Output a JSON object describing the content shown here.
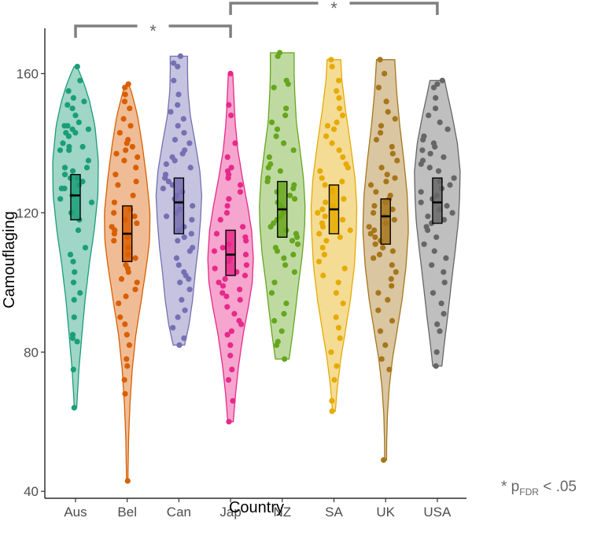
{
  "chart_data": {
    "type": "violin",
    "xlabel": "Country",
    "ylabel": "Camouflaging",
    "ylim": [
      38,
      173
    ],
    "yticks": [
      40,
      80,
      120,
      160
    ],
    "grid": false,
    "categories": [
      "Aus",
      "Bel",
      "Can",
      "Jap",
      "NZ",
      "SA",
      "UK",
      "USA"
    ],
    "colors": [
      "#1B9E77",
      "#D95F02",
      "#7570B3",
      "#E7298A",
      "#66A61E",
      "#E6AB02",
      "#A6761D",
      "#666666"
    ],
    "series": [
      {
        "category": "Aus",
        "min": 64,
        "max": 162,
        "median": 125,
        "q1": 118,
        "q3": 131,
        "profile": [
          [
            64,
            0.05
          ],
          [
            75,
            0.15
          ],
          [
            85,
            0.28
          ],
          [
            95,
            0.42
          ],
          [
            105,
            0.6
          ],
          [
            115,
            0.82
          ],
          [
            125,
            0.98
          ],
          [
            135,
            1.0
          ],
          [
            145,
            0.85
          ],
          [
            152,
            0.62
          ],
          [
            157,
            0.38
          ],
          [
            160,
            0.2
          ],
          [
            162,
            0.06
          ]
        ],
        "points": [
          162,
          158,
          155,
          153,
          152,
          151,
          150,
          148,
          146,
          145,
          145,
          144,
          144,
          143,
          143,
          142,
          140,
          139,
          139,
          138,
          138,
          135,
          133,
          133,
          132,
          131,
          130,
          130,
          129,
          128,
          127,
          127,
          125,
          124,
          123,
          120,
          118,
          115,
          110,
          108,
          106,
          103,
          100,
          97,
          95,
          90,
          85,
          84,
          83,
          75,
          64
        ]
      },
      {
        "category": "Bel",
        "min": 43,
        "max": 157,
        "median": 114,
        "q1": 106,
        "q3": 122,
        "profile": [
          [
            43,
            0.03
          ],
          [
            55,
            0.06
          ],
          [
            65,
            0.12
          ],
          [
            75,
            0.22
          ],
          [
            85,
            0.38
          ],
          [
            95,
            0.62
          ],
          [
            105,
            0.85
          ],
          [
            112,
            0.98
          ],
          [
            120,
            1.0
          ],
          [
            130,
            0.85
          ],
          [
            140,
            0.65
          ],
          [
            148,
            0.45
          ],
          [
            155,
            0.18
          ],
          [
            157,
            0.05
          ]
        ],
        "points": [
          157,
          156,
          154,
          152,
          150,
          147,
          145,
          143,
          141,
          140,
          139,
          138,
          137,
          136,
          135,
          133,
          131,
          129,
          128,
          125,
          123,
          121,
          120,
          119,
          118,
          117,
          116,
          115,
          114,
          113,
          112,
          110,
          108,
          107,
          105,
          104,
          103,
          101,
          100,
          98,
          96,
          94,
          90,
          88,
          85,
          82,
          78,
          76,
          72,
          68,
          43
        ]
      },
      {
        "category": "Can",
        "min": 82,
        "max": 165,
        "median": 123,
        "q1": 114,
        "q3": 130,
        "profile": [
          [
            82,
            0.25
          ],
          [
            88,
            0.45
          ],
          [
            95,
            0.6
          ],
          [
            103,
            0.72
          ],
          [
            110,
            0.85
          ],
          [
            118,
            0.95
          ],
          [
            125,
            1.0
          ],
          [
            132,
            0.92
          ],
          [
            140,
            0.72
          ],
          [
            148,
            0.5
          ],
          [
            155,
            0.4
          ],
          [
            160,
            0.38
          ],
          [
            165,
            0.38
          ]
        ],
        "points": [
          165,
          163,
          162,
          158,
          154,
          151,
          149,
          147,
          145,
          143,
          141,
          140,
          138,
          137,
          136,
          135,
          134,
          133,
          131,
          130,
          129,
          128,
          127,
          126,
          125,
          124,
          123,
          122,
          121,
          120,
          119,
          118,
          116,
          115,
          114,
          113,
          112,
          110,
          109,
          107,
          105,
          103,
          102,
          101,
          100,
          98,
          95,
          92,
          90,
          87,
          84,
          82
        ]
      },
      {
        "category": "Jap",
        "min": 60,
        "max": 160,
        "median": 108,
        "q1": 102,
        "q3": 115,
        "profile": [
          [
            60,
            0.12
          ],
          [
            68,
            0.22
          ],
          [
            76,
            0.35
          ],
          [
            85,
            0.55
          ],
          [
            93,
            0.78
          ],
          [
            100,
            0.95
          ],
          [
            107,
            1.0
          ],
          [
            115,
            0.92
          ],
          [
            122,
            0.75
          ],
          [
            130,
            0.52
          ],
          [
            138,
            0.32
          ],
          [
            146,
            0.2
          ],
          [
            154,
            0.14
          ],
          [
            160,
            0.1
          ]
        ],
        "points": [
          160,
          151,
          148,
          140,
          136,
          133,
          132,
          131,
          130,
          128,
          126,
          124,
          122,
          120,
          118,
          116,
          114,
          113,
          112,
          111,
          110,
          109,
          108,
          107,
          106,
          105,
          104,
          103,
          102,
          101,
          100,
          99,
          98,
          97,
          96,
          95,
          93,
          91,
          89,
          88,
          86,
          85,
          82,
          79,
          75,
          72,
          66,
          60
        ]
      },
      {
        "category": "NZ",
        "min": 78,
        "max": 166,
        "median": 121,
        "q1": 113,
        "q3": 129,
        "profile": [
          [
            78,
            0.3
          ],
          [
            85,
            0.45
          ],
          [
            92,
            0.58
          ],
          [
            100,
            0.72
          ],
          [
            108,
            0.88
          ],
          [
            116,
            0.98
          ],
          [
            122,
            1.0
          ],
          [
            130,
            0.93
          ],
          [
            138,
            0.78
          ],
          [
            146,
            0.62
          ],
          [
            154,
            0.55
          ],
          [
            160,
            0.52
          ],
          [
            166,
            0.52
          ]
        ],
        "points": [
          166,
          165,
          158,
          157,
          156,
          150,
          148,
          146,
          144,
          142,
          140,
          138,
          136,
          134,
          133,
          132,
          130,
          129,
          128,
          127,
          126,
          125,
          124,
          123,
          122,
          121,
          120,
          119,
          118,
          117,
          116,
          115,
          114,
          113,
          112,
          111,
          110,
          109,
          108,
          107,
          105,
          103,
          100,
          97,
          94,
          91,
          89,
          86,
          83,
          82,
          78
        ]
      },
      {
        "category": "SA",
        "min": 63,
        "max": 164,
        "median": 121,
        "q1": 114,
        "q3": 128,
        "profile": [
          [
            63,
            0.06
          ],
          [
            70,
            0.15
          ],
          [
            78,
            0.3
          ],
          [
            86,
            0.5
          ],
          [
            95,
            0.72
          ],
          [
            105,
            0.9
          ],
          [
            115,
            0.98
          ],
          [
            122,
            1.0
          ],
          [
            130,
            0.92
          ],
          [
            140,
            0.72
          ],
          [
            150,
            0.5
          ],
          [
            158,
            0.35
          ],
          [
            164,
            0.3
          ]
        ],
        "points": [
          164,
          162,
          158,
          155,
          153,
          150,
          148,
          146,
          145,
          144,
          142,
          140,
          138,
          136,
          134,
          133,
          132,
          130,
          129,
          128,
          127,
          126,
          124,
          123,
          122,
          121,
          120,
          119,
          118,
          117,
          116,
          115,
          114,
          113,
          112,
          110,
          108,
          106,
          104,
          102,
          100,
          97,
          94,
          90,
          87,
          84,
          80,
          76,
          72,
          66,
          63
        ]
      },
      {
        "category": "UK",
        "min": 49,
        "max": 164,
        "median": 119,
        "q1": 111,
        "q3": 124,
        "profile": [
          [
            49,
            0.04
          ],
          [
            55,
            0.05
          ],
          [
            62,
            0.08
          ],
          [
            70,
            0.16
          ],
          [
            78,
            0.3
          ],
          [
            86,
            0.5
          ],
          [
            95,
            0.72
          ],
          [
            105,
            0.9
          ],
          [
            115,
            1.0
          ],
          [
            125,
            0.95
          ],
          [
            135,
            0.8
          ],
          [
            145,
            0.62
          ],
          [
            155,
            0.48
          ],
          [
            164,
            0.4
          ]
        ],
        "points": [
          164,
          160,
          156,
          152,
          149,
          147,
          145,
          143,
          141,
          139,
          137,
          135,
          133,
          131,
          130,
          129,
          128,
          126,
          125,
          124,
          123,
          122,
          121,
          120,
          119,
          118,
          117,
          116,
          115,
          114,
          113,
          112,
          111,
          110,
          109,
          108,
          107,
          105,
          103,
          101,
          99,
          97,
          95,
          92,
          89,
          86,
          82,
          78,
          75,
          49
        ]
      },
      {
        "category": "USA",
        "min": 76,
        "max": 158,
        "median": 123,
        "q1": 117,
        "q3": 130,
        "profile": [
          [
            76,
            0.2
          ],
          [
            82,
            0.3
          ],
          [
            90,
            0.45
          ],
          [
            100,
            0.62
          ],
          [
            110,
            0.8
          ],
          [
            118,
            0.93
          ],
          [
            125,
            0.98
          ],
          [
            132,
            1.0
          ],
          [
            140,
            0.88
          ],
          [
            148,
            0.65
          ],
          [
            154,
            0.45
          ],
          [
            158,
            0.32
          ]
        ],
        "points": [
          158,
          157,
          156,
          153,
          150,
          148,
          146,
          144,
          142,
          141,
          140,
          139,
          138,
          137,
          136,
          135,
          134,
          133,
          132,
          130,
          129,
          128,
          127,
          126,
          125,
          124,
          123,
          122,
          121,
          120,
          119,
          118,
          117,
          116,
          115,
          113,
          111,
          109,
          107,
          105,
          103,
          100,
          97,
          94,
          91,
          88,
          86,
          80,
          76
        ]
      }
    ],
    "annotations": [
      {
        "from": "Aus",
        "to": "Jap",
        "label": "*"
      },
      {
        "from": "Jap",
        "to": "USA",
        "label": "*"
      }
    ]
  },
  "footnote": {
    "prefix": "* p",
    "subscript": "FDR",
    "suffix": " < .05"
  }
}
